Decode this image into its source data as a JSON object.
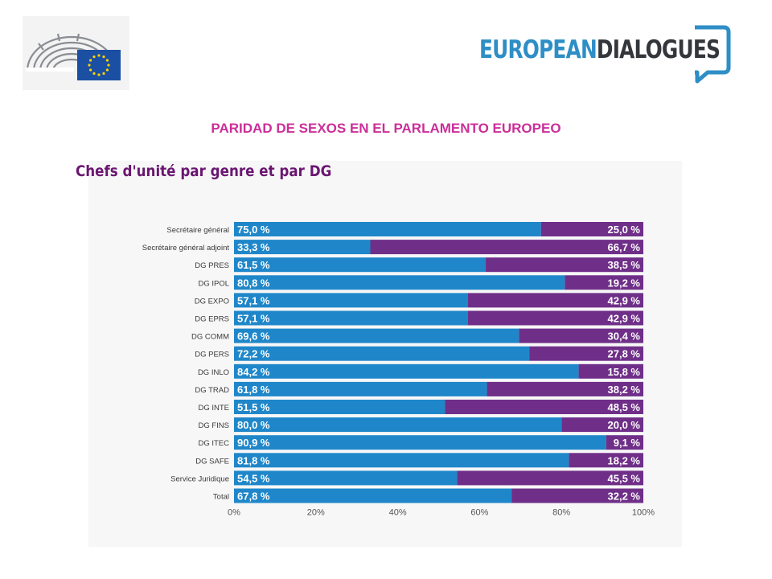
{
  "header": {
    "brand_part1": "EUROPEAN",
    "brand_part2": "DIALOGUES",
    "title": "PARIDAD DE SEXOS EN EL PARLAMENTO EUROPEO"
  },
  "colors": {
    "series_a": "#1f87c9",
    "series_b": "#6f2f88",
    "title": "#cc2e98",
    "chart_title": "#6a1670",
    "eu_blue": "#1a4fa3",
    "brand_blue": "#2e8ec6"
  },
  "icons": [
    "parliament-hemicycle-icon",
    "eu-flag-icon",
    "speech-bubble-icon"
  ],
  "chart_data": {
    "type": "bar",
    "orientation": "horizontal",
    "stacked": true,
    "title": "Chefs d'unité par genre et par DG",
    "categories": [
      "Secrétaire général",
      "Secrétaire général adjoint",
      "DG PRES",
      "DG IPOL",
      "DG EXPO",
      "DG EPRS",
      "DG COMM",
      "DG PERS",
      "DG INLO",
      "DG TRAD",
      "DG INTE",
      "DG FINS",
      "DG ITEC",
      "DG SAFE",
      "Service Juridique",
      "Total"
    ],
    "series": [
      {
        "values": [
          75.0,
          33.3,
          61.5,
          80.8,
          57.1,
          57.1,
          69.6,
          72.2,
          84.2,
          61.8,
          51.5,
          80.0,
          90.9,
          81.8,
          54.5,
          67.8
        ],
        "labels": [
          "75,0 %",
          "33,3 %",
          "61,5 %",
          "80,8 %",
          "57,1 %",
          "57,1 %",
          "69,6 %",
          "72,2 %",
          "84,2 %",
          "61,8 %",
          "51,5 %",
          "80,0 %",
          "90,9 %",
          "81,8 %",
          "54,5 %",
          "67,8 %"
        ]
      },
      {
        "values": [
          25.0,
          66.7,
          38.5,
          19.2,
          42.9,
          42.9,
          30.4,
          27.8,
          15.8,
          38.2,
          48.5,
          20.0,
          9.1,
          18.2,
          45.5,
          32.2
        ],
        "labels": [
          "25,0 %",
          "66,7 %",
          "38,5 %",
          "19,2 %",
          "42,9 %",
          "42,9 %",
          "30,4 %",
          "27,8 %",
          "15,8 %",
          "38,2 %",
          "48,5 %",
          "20,0 %",
          "9,1 %",
          "18,2 %",
          "45,5 %",
          "32,2 %"
        ]
      }
    ],
    "x_ticks": [
      "0%",
      "20%",
      "40%",
      "60%",
      "80%",
      "100%"
    ],
    "xlim": [
      0,
      100
    ]
  }
}
